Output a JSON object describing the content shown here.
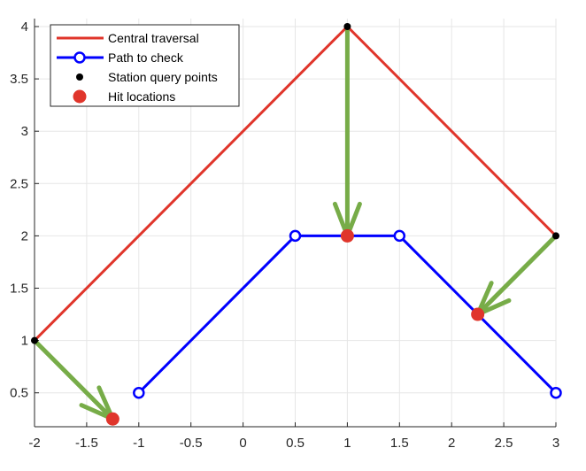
{
  "chart_data": {
    "type": "line",
    "title": "",
    "xlabel": "",
    "ylabel": "",
    "xlim": [
      -2,
      3
    ],
    "ylim": [
      0.2,
      4.1
    ],
    "xticks": [
      -2,
      -1.5,
      -1,
      -0.5,
      0,
      0.5,
      1,
      1.5,
      2,
      2.5,
      3
    ],
    "xtick_labels": [
      "-2",
      "-1.5",
      "-1",
      "-0.5",
      "0",
      "0.5",
      "1",
      "1.5",
      "2",
      "2.5",
      "3"
    ],
    "yticks": [
      0.5,
      1,
      1.5,
      2,
      2.5,
      3,
      3.5,
      4
    ],
    "ytick_labels": [
      "0.5",
      "1",
      "1.5",
      "2",
      "2.5",
      "3",
      "3.5",
      "4"
    ],
    "grid": true,
    "legend_position": "top-left",
    "series": [
      {
        "name": "Central traversal",
        "kind": "line",
        "color": "#e0352b",
        "points": [
          [
            -2,
            1
          ],
          [
            1,
            4
          ],
          [
            3,
            2
          ]
        ]
      },
      {
        "name": "Path to check",
        "kind": "line-circle-markers",
        "color": "#0000ff",
        "points": [
          [
            -1,
            0.5
          ],
          [
            0.5,
            2
          ],
          [
            1.5,
            2
          ],
          [
            3,
            0.5
          ]
        ]
      },
      {
        "name": "Station query points",
        "kind": "dot",
        "color": "#000000",
        "points": [
          [
            -2,
            1
          ],
          [
            1,
            4
          ],
          [
            3,
            2
          ]
        ]
      },
      {
        "name": "Hit locations",
        "kind": "big-dot",
        "color": "#e0352b",
        "points": [
          [
            -1.25,
            0.25
          ],
          [
            1,
            2
          ],
          [
            2.25,
            1.25
          ]
        ]
      }
    ],
    "arrows": {
      "color": "#77ac48",
      "segments": [
        {
          "from": [
            -2,
            1
          ],
          "to": [
            -1.25,
            0.25
          ]
        },
        {
          "from": [
            1,
            4
          ],
          "to": [
            1,
            2
          ]
        },
        {
          "from": [
            3,
            2
          ],
          "to": [
            2.25,
            1.25
          ]
        }
      ]
    }
  }
}
